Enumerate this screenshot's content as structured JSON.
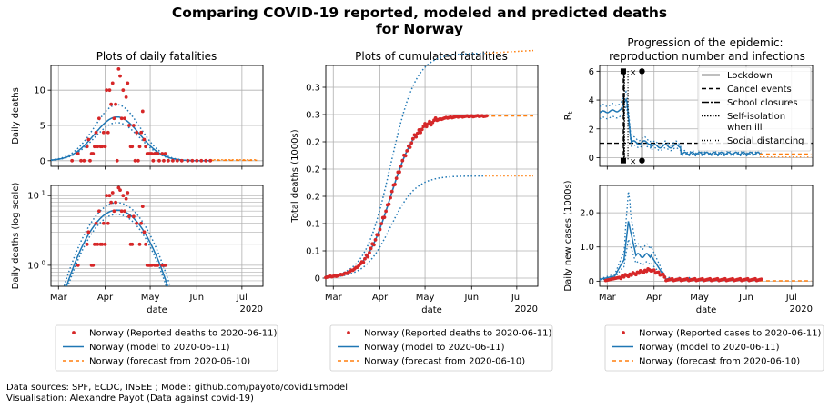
{
  "figure": {
    "title_line1": "Comparing COVID-19 reported, modeled and predicted deaths",
    "title_line2": "for Norway",
    "source_line1": "Data sources: SPF, ECDC, INSEE ; Model: github.com/payoto/covid19model",
    "source_line2": "Visualisation: Alexandre Payot (Data against covid-19)"
  },
  "colors": {
    "reported": "#d62728",
    "model": "#1f77b4",
    "forecast": "#ff7f0e",
    "grid": "#b0b0b0",
    "axis": "#000000"
  },
  "legends": {
    "left": [
      "Norway (Reported deaths to  2020-06-11)",
      "Norway (model to  2020-06-11)",
      "Norway (forecast from  2020-06-10)"
    ],
    "middle": [
      "Norway (Reported deaths to  2020-06-11)",
      "Norway (model to  2020-06-11)",
      "Norway (forecast from  2020-06-10)"
    ],
    "right": [
      "Norway (Reported cases to  2020-06-11)",
      "Norway (model to  2020-06-11)",
      "Norway (forecast from  2020-06-10)"
    ]
  },
  "chart_data": [
    {
      "id": "daily",
      "type": "scatter",
      "title": "Plots of daily fatalities",
      "ylabel": "Daily deaths",
      "xlabel": "",
      "x_ticks": [
        "Mar",
        "Apr",
        "May",
        "Jun",
        "Jul"
      ],
      "x_range_day_of_year": [
        56,
        197
      ],
      "ylim": [
        -0.8,
        13.5
      ],
      "y_ticks": [
        "0",
        "5",
        "10"
      ],
      "y_tick_values": [
        0,
        5,
        10
      ],
      "reported_points": [
        {
          "x": 70,
          "y": 0
        },
        {
          "x": 74,
          "y": 1
        },
        {
          "x": 76,
          "y": 0
        },
        {
          "x": 78,
          "y": 0
        },
        {
          "x": 80,
          "y": 2
        },
        {
          "x": 81,
          "y": 3
        },
        {
          "x": 82,
          "y": 0
        },
        {
          "x": 83,
          "y": 1
        },
        {
          "x": 84,
          "y": 1
        },
        {
          "x": 85,
          "y": 2
        },
        {
          "x": 86,
          "y": 4
        },
        {
          "x": 87,
          "y": 2
        },
        {
          "x": 88,
          "y": 6
        },
        {
          "x": 89,
          "y": 2
        },
        {
          "x": 90,
          "y": 2
        },
        {
          "x": 91,
          "y": 4
        },
        {
          "x": 92,
          "y": 2
        },
        {
          "x": 93,
          "y": 10
        },
        {
          "x": 94,
          "y": 4
        },
        {
          "x": 95,
          "y": 10
        },
        {
          "x": 96,
          "y": 8
        },
        {
          "x": 97,
          "y": 11
        },
        {
          "x": 98,
          "y": 6
        },
        {
          "x": 99,
          "y": 8
        },
        {
          "x": 100,
          "y": 0
        },
        {
          "x": 101,
          "y": 13
        },
        {
          "x": 102,
          "y": 12
        },
        {
          "x": 103,
          "y": 6
        },
        {
          "x": 104,
          "y": 10
        },
        {
          "x": 105,
          "y": 6
        },
        {
          "x": 106,
          "y": 9
        },
        {
          "x": 107,
          "y": 11
        },
        {
          "x": 108,
          "y": 5
        },
        {
          "x": 109,
          "y": 2
        },
        {
          "x": 110,
          "y": 2
        },
        {
          "x": 111,
          "y": 5
        },
        {
          "x": 112,
          "y": 0
        },
        {
          "x": 113,
          "y": 4
        },
        {
          "x": 114,
          "y": 0
        },
        {
          "x": 115,
          "y": 2
        },
        {
          "x": 116,
          "y": 4
        },
        {
          "x": 117,
          "y": 7
        },
        {
          "x": 118,
          "y": 3
        },
        {
          "x": 119,
          "y": 2
        },
        {
          "x": 120,
          "y": 1
        },
        {
          "x": 121,
          "y": 1
        },
        {
          "x": 122,
          "y": 1
        },
        {
          "x": 123,
          "y": 1
        },
        {
          "x": 124,
          "y": 0
        },
        {
          "x": 125,
          "y": 1
        },
        {
          "x": 126,
          "y": 1
        },
        {
          "x": 127,
          "y": 1
        },
        {
          "x": 128,
          "y": 0
        },
        {
          "x": 130,
          "y": 1
        },
        {
          "x": 131,
          "y": 0
        },
        {
          "x": 132,
          "y": 1
        },
        {
          "x": 134,
          "y": 0
        },
        {
          "x": 137,
          "y": 0
        },
        {
          "x": 140,
          "y": 0
        },
        {
          "x": 143,
          "y": 0
        },
        {
          "x": 147,
          "y": 0
        },
        {
          "x": 150,
          "y": 0
        },
        {
          "x": 153,
          "y": 0
        },
        {
          "x": 156,
          "y": 0
        },
        {
          "x": 159,
          "y": 0
        },
        {
          "x": 162,
          "y": 0
        }
      ],
      "model_peak": {
        "day": 100,
        "value": 6.2,
        "width_days": 15,
        "lower_factor": 0.87,
        "upper_factor": 1.28
      },
      "model_to_day": 163,
      "forecast_from_day": 162,
      "forecast_to_day": 193
    },
    {
      "id": "daily_log",
      "type": "scatter",
      "title": "",
      "ylabel": "Daily deaths (log scale)",
      "xlabel": "date",
      "x_ticks": [
        "Mar",
        "Apr",
        "May",
        "Jun",
        "Jul"
      ],
      "x_year_label": "2020",
      "y_scale": "log",
      "ylim": [
        0.5,
        14
      ],
      "y_ticks": [
        "10",
        "10"
      ],
      "y_tick_exponents": [
        "0",
        "1"
      ],
      "y_tick_values": [
        1,
        10
      ]
    },
    {
      "id": "cumulative",
      "type": "line",
      "title": "Plots of cumulated fatalities",
      "ylabel": "Total deaths (1000s)",
      "xlabel": "date",
      "x_ticks": [
        "Mar",
        "Apr",
        "May",
        "Jun",
        "Jul"
      ],
      "x_year_label": "2020",
      "ylim": [
        -0.012,
        0.312
      ],
      "y_ticks": [
        "0",
        "0.1",
        "0.1",
        "0.2",
        "0.2",
        "0.2",
        "0.3",
        "0.3"
      ],
      "y_tick_values": [
        0,
        0.04,
        0.08,
        0.12,
        0.16,
        0.2,
        0.24,
        0.28
      ],
      "final_reported": 0.238,
      "final_lower": 0.15,
      "final_upper": 0.33,
      "model_mid_day": 99,
      "model_steepness_days": 8.5
    },
    {
      "id": "rt",
      "type": "line",
      "title_line1": "Progression of the epidemic:",
      "title_line2": "reproduction number and infections",
      "ylabel": "R_t",
      "ylabel_main": "R",
      "ylabel_sub": "t",
      "ylim": [
        -0.6,
        6.4
      ],
      "y_ticks": [
        "0",
        "2",
        "4",
        "6"
      ],
      "y_tick_values": [
        0,
        2,
        4,
        6
      ],
      "threshold": 1,
      "rt_start": 3.15,
      "rt_peak": 3.9,
      "rt_after": 0.8,
      "rt_late": 0.3,
      "interventions": [
        {
          "name": "Lockdown",
          "day": 84
        },
        {
          "name": "Cancel events",
          "day": 72
        },
        {
          "name": "School closures",
          "day": 72
        },
        {
          "name": "Self-isolation\nwhen ill",
          "day": 72
        },
        {
          "name": "Social distancing",
          "day": 74
        }
      ],
      "legend": [
        "Lockdown",
        "Cancel events",
        "School closures",
        "Self-isolation",
        "when ill",
        "Social distancing"
      ]
    },
    {
      "id": "cases",
      "type": "scatter",
      "title": "",
      "ylabel": "Daily new cases (1000s)",
      "xlabel": "date",
      "x_ticks": [
        "Mar",
        "Apr",
        "May",
        "Jun",
        "Jul"
      ],
      "x_year_label": "2020",
      "ylim": [
        -0.15,
        2.8
      ],
      "y_ticks": [
        "0",
        "1.0",
        "2.0"
      ],
      "y_tick_values": [
        0,
        1,
        2
      ],
      "model_spike": {
        "day": 75,
        "value": 1.75,
        "upper": 2.6
      },
      "reported_peak": 0.3
    }
  ]
}
